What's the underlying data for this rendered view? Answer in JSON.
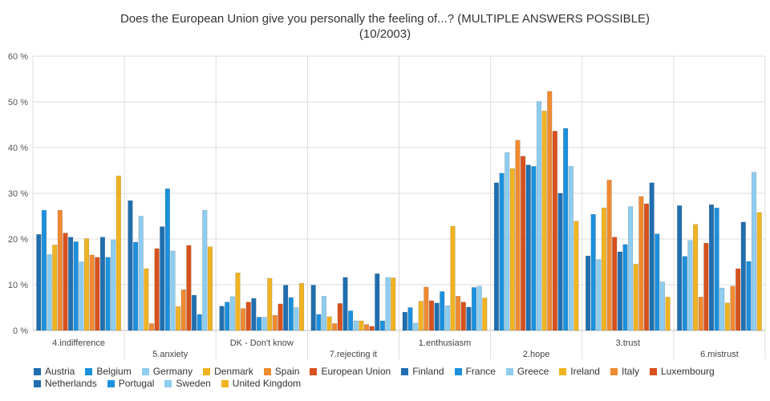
{
  "chart_data": {
    "type": "bar",
    "title": "Does the European Union give you personally the feeling of...? (MULTIPLE ANSWERS POSSIBLE)",
    "subtitle": "(10/2003)",
    "xlabel": "",
    "ylabel": "",
    "ylim": [
      0,
      60
    ],
    "y_ticks": [
      "0 %",
      "10 %",
      "20 %",
      "30 %",
      "40 %",
      "50 %",
      "60 %"
    ],
    "grid": true,
    "legend_position": "bottom",
    "categories": [
      {
        "line1": "4.indifference",
        "line2": ""
      },
      {
        "line1": "",
        "line2": "5.anxiety"
      },
      {
        "line1": "DK - Don't know",
        "line2": ""
      },
      {
        "line1": "",
        "line2": "7.rejecting it"
      },
      {
        "line1": "1.enthusiasm",
        "line2": ""
      },
      {
        "line1": "",
        "line2": "2.hope"
      },
      {
        "line1": "3.trust",
        "line2": ""
      },
      {
        "line1": "",
        "line2": "6.mistrust"
      }
    ],
    "series": [
      {
        "name": "Austria",
        "color": "#1f6fb1",
        "values": [
          21,
          28.4,
          5.3,
          9.9,
          4,
          32.3,
          16.3,
          27.3
        ]
      },
      {
        "name": "Belgium",
        "color": "#1b90dd",
        "values": [
          26.3,
          19.3,
          6.2,
          3.5,
          5,
          34.4,
          25.4,
          16.2
        ]
      },
      {
        "name": "Germany",
        "color": "#8dcdf0",
        "values": [
          16.6,
          25,
          7.4,
          7.5,
          1.6,
          38.9,
          15.5,
          19.7
        ]
      },
      {
        "name": "Denmark",
        "color": "#f0b321",
        "values": [
          18.7,
          13.5,
          12.6,
          3,
          6.4,
          35.4,
          26.8,
          23.2
        ]
      },
      {
        "name": "Spain",
        "color": "#f08a30",
        "values": [
          26.3,
          1.5,
          4.8,
          1.5,
          9.5,
          41.6,
          32.9,
          7.3
        ]
      },
      {
        "name": "European Union",
        "color": "#d9511c",
        "values": [
          21.3,
          17.9,
          6.2,
          5.9,
          6.5,
          38.1,
          20.4,
          19.1
        ]
      },
      {
        "name": "Finland",
        "color": "#1f6fb1",
        "values": [
          20.4,
          22.7,
          7,
          11.6,
          6,
          36.2,
          17.2,
          27.5
        ]
      },
      {
        "name": "France",
        "color": "#1b90dd",
        "values": [
          19.4,
          31,
          2.9,
          4.3,
          8.5,
          35.9,
          18.8,
          26.8
        ]
      },
      {
        "name": "Greece",
        "color": "#8dcdf0",
        "values": [
          15,
          17.4,
          2.9,
          2.1,
          5.4,
          50.1,
          27.1,
          9.3
        ]
      },
      {
        "name": "Ireland",
        "color": "#f0b321",
        "values": [
          20.1,
          5.2,
          11.4,
          2.1,
          22.8,
          48,
          14.5,
          6
        ]
      },
      {
        "name": "Italy",
        "color": "#f08a30",
        "values": [
          16.5,
          8.9,
          3.3,
          1.3,
          7.5,
          52.3,
          29.3,
          9.7
        ]
      },
      {
        "name": "Luxembourg",
        "color": "#d9511c",
        "values": [
          16,
          18.6,
          5.8,
          0.9,
          6.2,
          43.6,
          27.7,
          13.5
        ]
      },
      {
        "name": "Netherlands",
        "color": "#1f6fb1",
        "values": [
          20.4,
          7.7,
          9.9,
          12.4,
          5.1,
          30,
          32.3,
          23.7
        ]
      },
      {
        "name": "Portugal",
        "color": "#1b90dd",
        "values": [
          16,
          3.5,
          7.2,
          2.1,
          9.4,
          44.2,
          21.1,
          15.1
        ]
      },
      {
        "name": "Sweden",
        "color": "#8dcdf0",
        "values": [
          19.8,
          26.3,
          5,
          11.6,
          9.7,
          35.9,
          10.6,
          34.6
        ]
      },
      {
        "name": "United Kingdom",
        "color": "#f0b321",
        "values": [
          33.8,
          18.3,
          10.3,
          11.5,
          7.1,
          23.9,
          7.3,
          25.8
        ]
      }
    ]
  }
}
